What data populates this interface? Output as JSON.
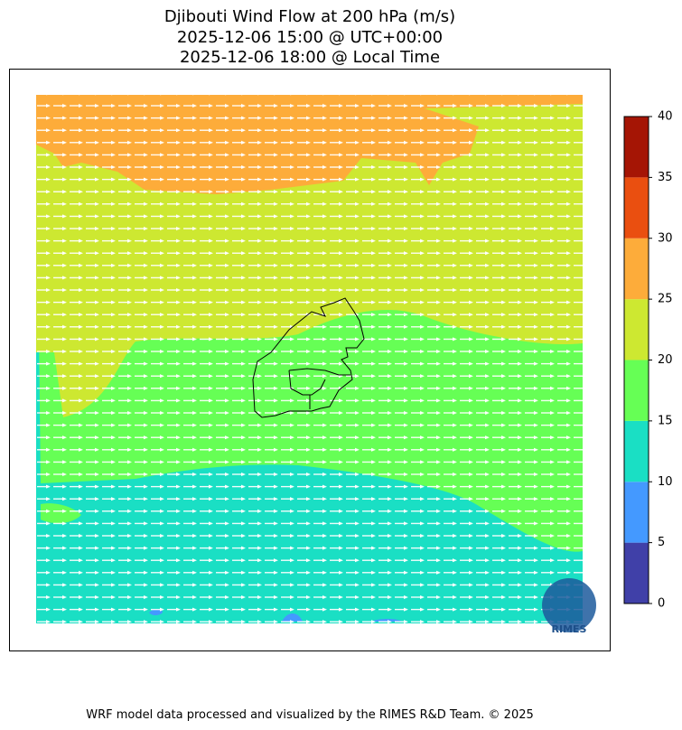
{
  "title": [
    "Djibouti Wind Flow at 200 hPa (m/s)",
    "2025-12-06 15:00 @ UTC+00:00",
    "2025-12-06 18:00 @ Local Time"
  ],
  "colorbar": {
    "ticks": [
      0,
      5,
      10,
      15,
      20,
      25,
      30,
      35,
      40
    ],
    "colors": [
      "#4040a8",
      "#4499ff",
      "#1adfc4",
      "#66ff55",
      "#cde831",
      "#fdac3a",
      "#ea4f10",
      "#a51505"
    ]
  },
  "logo": "RIMES",
  "footer": "WRF model data processed and visualized by the RIMES R&D Team. © 2025"
}
